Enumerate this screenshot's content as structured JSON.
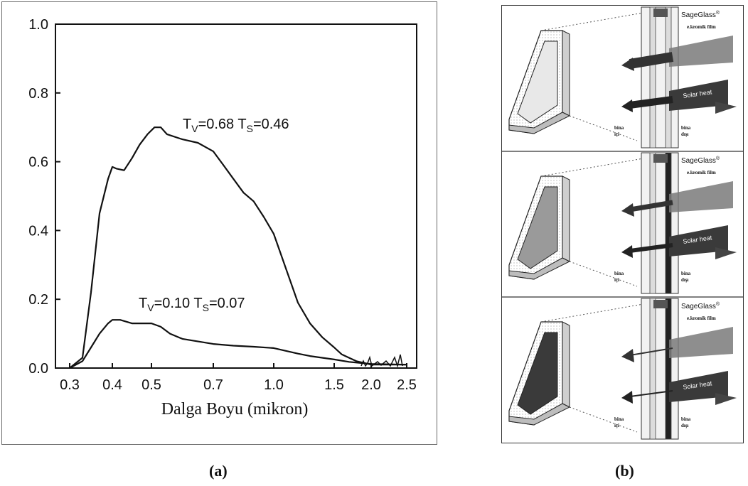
{
  "panel_a": {
    "caption": "(a)",
    "chart_data": {
      "type": "line",
      "xlabel": "Dalga Boyu (mikron)",
      "ylabel": "",
      "x_ticks": [
        "0.3",
        "0.4",
        "0.5",
        "0.7",
        "1.0",
        "1.5",
        "2.0",
        "2.5"
      ],
      "y_ticks": [
        "0.0",
        "0.2",
        "0.4",
        "0.6",
        "0.8",
        "1.0"
      ],
      "ylim": [
        0,
        1
      ],
      "series": [
        {
          "label": "T_V=0.68   T_S=0.46",
          "ann_tv": "0.68",
          "ann_ts": "0.46",
          "x": [
            0.3,
            0.33,
            0.35,
            0.37,
            0.39,
            0.4,
            0.41,
            0.43,
            0.45,
            0.47,
            0.49,
            0.51,
            0.53,
            0.55,
            0.6,
            0.65,
            0.7,
            0.75,
            0.8,
            0.85,
            0.9,
            0.95,
            1.0,
            1.05,
            1.1,
            1.15,
            1.2,
            1.3,
            1.4,
            1.5,
            1.6,
            1.7,
            1.8,
            1.9,
            2.0,
            2.5
          ],
          "values": [
            0.0,
            0.03,
            0.22,
            0.45,
            0.55,
            0.585,
            0.58,
            0.575,
            0.61,
            0.65,
            0.68,
            0.7,
            0.7,
            0.68,
            0.665,
            0.655,
            0.63,
            0.59,
            0.55,
            0.51,
            0.485,
            0.44,
            0.39,
            0.34,
            0.29,
            0.24,
            0.19,
            0.13,
            0.09,
            0.06,
            0.04,
            0.03,
            0.02,
            0.015,
            0.01,
            0.01
          ]
        },
        {
          "label": "T_V=0.10   T_S=0.07",
          "ann_tv": "0.10",
          "ann_ts": "0.07",
          "x": [
            0.3,
            0.33,
            0.35,
            0.37,
            0.39,
            0.4,
            0.42,
            0.45,
            0.48,
            0.5,
            0.53,
            0.56,
            0.6,
            0.7,
            0.8,
            0.9,
            1.0,
            1.1,
            1.2,
            1.3,
            1.4,
            1.5,
            1.7,
            2.0,
            2.5
          ],
          "values": [
            0.0,
            0.02,
            0.06,
            0.1,
            0.13,
            0.14,
            0.14,
            0.13,
            0.13,
            0.13,
            0.12,
            0.1,
            0.085,
            0.07,
            0.065,
            0.062,
            0.058,
            0.05,
            0.042,
            0.035,
            0.03,
            0.025,
            0.018,
            0.012,
            0.01
          ]
        }
      ]
    }
  },
  "panel_b": {
    "caption": "(b)",
    "brand": "SageGlass",
    "film_label": "e.kromik film",
    "solar_heat": "Solar heat",
    "inside": [
      "bina",
      "içi"
    ],
    "outside": [
      "bina",
      "dışı"
    ],
    "states": [
      "bright",
      "mid",
      "dark"
    ]
  }
}
